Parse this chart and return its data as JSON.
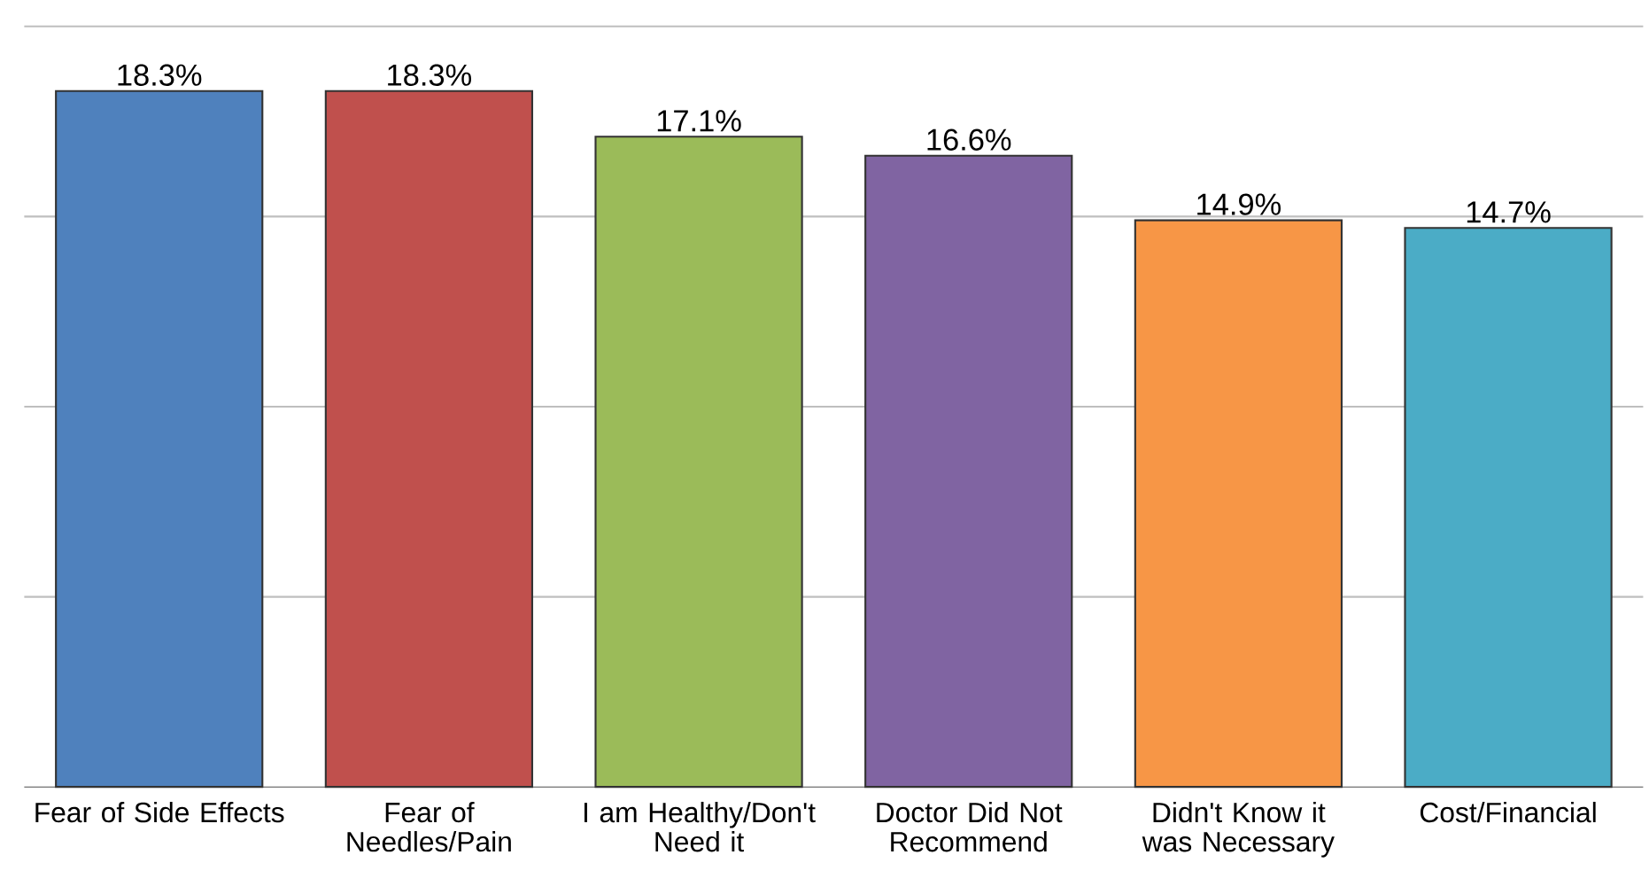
{
  "chart_data": {
    "type": "bar",
    "categories": [
      "Fear of Side Effects",
      "Fear of Needles/Pain",
      "I am Healthy/Don't Need it",
      "Doctor Did Not Recommend",
      "Didn't Know it was Necessary",
      "Cost/Financial"
    ],
    "values": [
      18.3,
      18.3,
      17.1,
      16.6,
      14.9,
      14.7
    ],
    "value_labels": [
      "18.3%",
      "18.3%",
      "17.1%",
      "16.6%",
      "14.9%",
      "14.7%"
    ],
    "colors": [
      "#4f81bd",
      "#c0504d",
      "#9bbb59",
      "#8064a2",
      "#f79646",
      "#4bacc6"
    ],
    "ylim": [
      0,
      20
    ],
    "yticks": [
      {
        "value": 5,
        "label": null
      },
      {
        "value": 10,
        "label": null
      },
      {
        "value": 15,
        "label": null
      },
      {
        "value": 20,
        "label": null
      }
    ],
    "grid": "y",
    "tick_labels": "x"
  }
}
